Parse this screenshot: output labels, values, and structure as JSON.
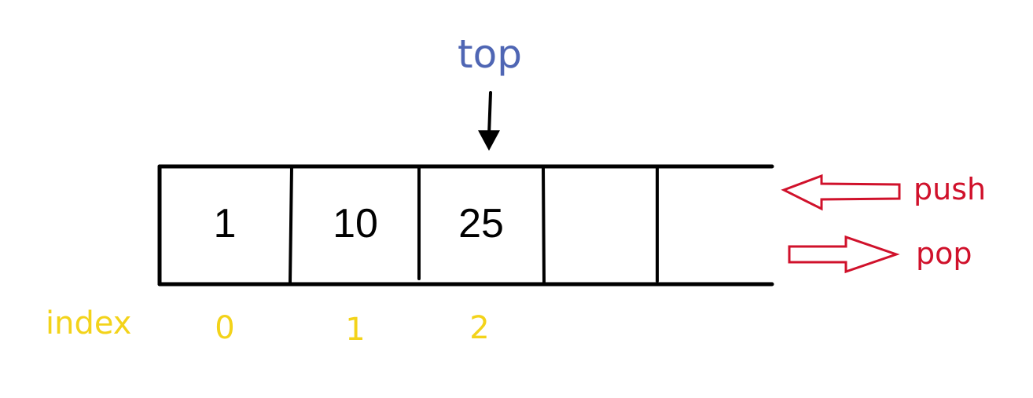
{
  "top_pointer": {
    "label": "top",
    "label_color": "#4f66b4",
    "target_index": 2
  },
  "stack": {
    "capacity": 5,
    "cells": [
      {
        "index": "0",
        "value": "1"
      },
      {
        "index": "1",
        "value": "10"
      },
      {
        "index": "2",
        "value": "25"
      },
      {
        "index": "",
        "value": ""
      },
      {
        "index": "",
        "value": ""
      }
    ]
  },
  "index_label": {
    "text": "index",
    "color": "#f3d31a"
  },
  "operations": {
    "push": {
      "label": "push",
      "direction": "in"
    },
    "pop": {
      "label": "pop",
      "direction": "out"
    },
    "color": "#d0112b"
  }
}
